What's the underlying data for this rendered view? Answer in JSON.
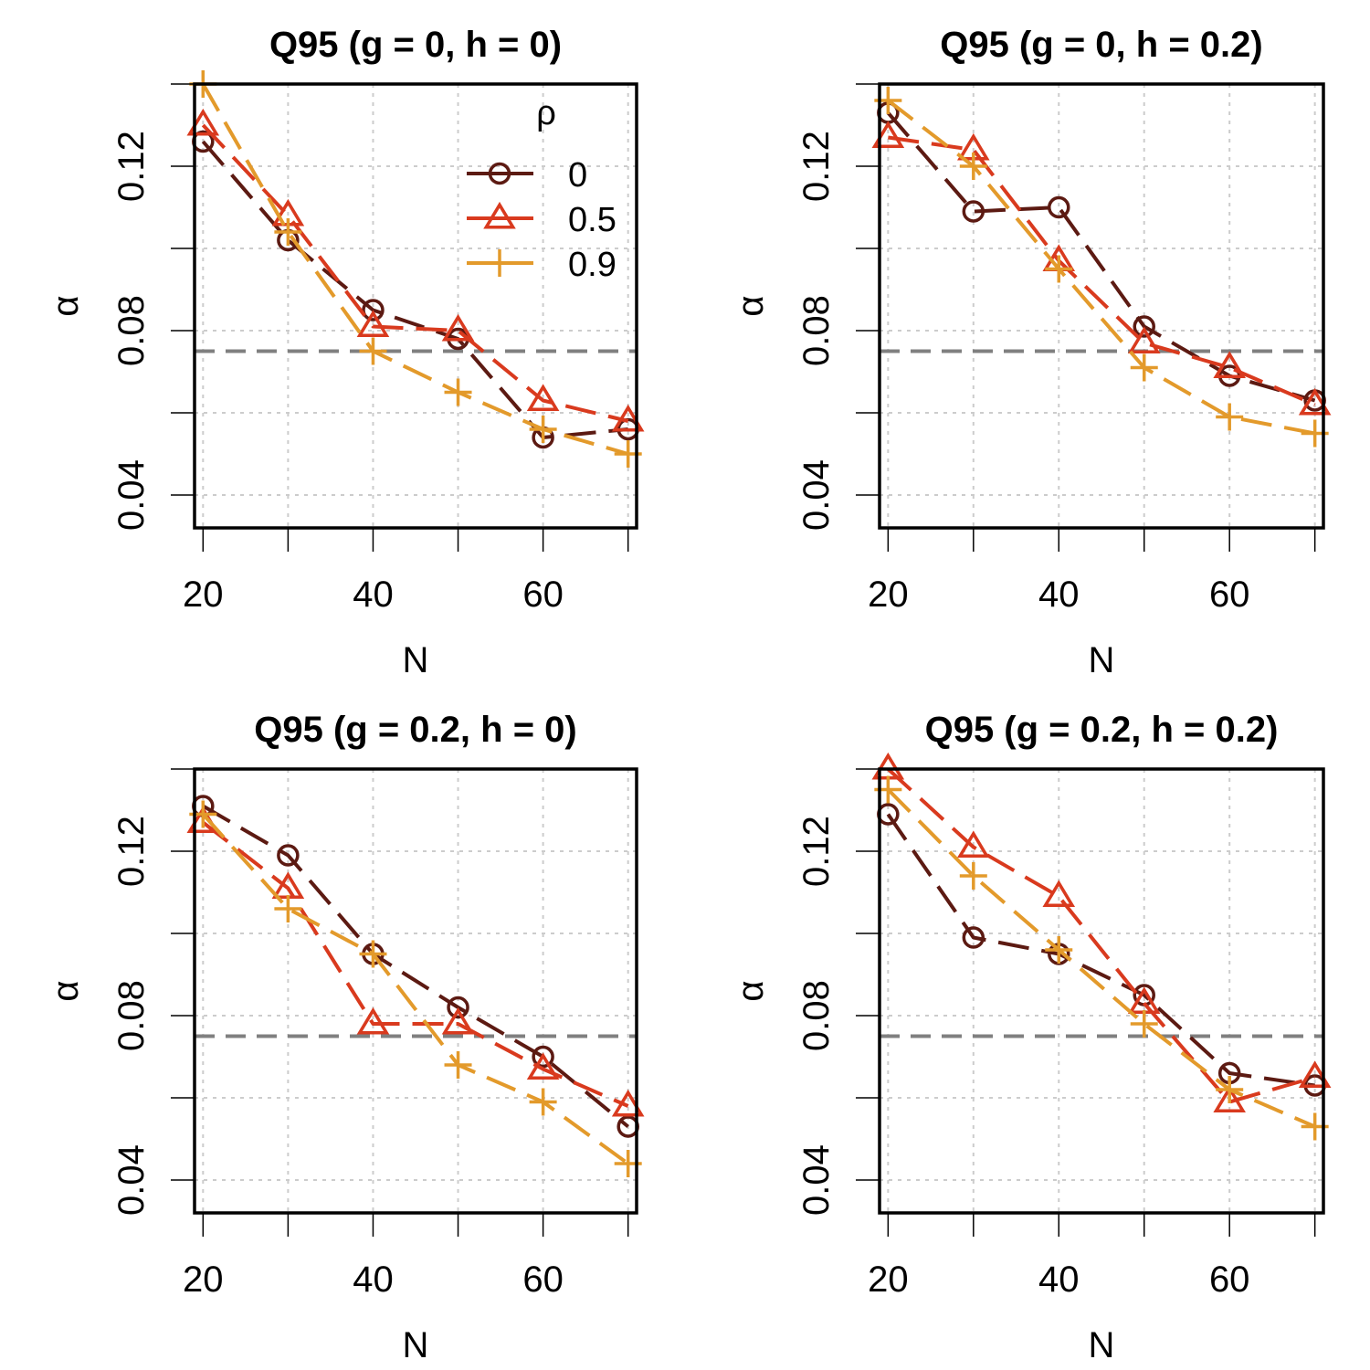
{
  "figure": {
    "xlabel": "N",
    "ylabel": "α",
    "legend": {
      "title": "ρ",
      "placement": "top-right of first panel",
      "entries": [
        {
          "label": "0",
          "marker": "circle",
          "color": "#5C1A12"
        },
        {
          "label": "0.5",
          "marker": "triangle",
          "color": "#D93A1E"
        },
        {
          "label": "0.9",
          "marker": "plus",
          "color": "#E39A2B"
        }
      ]
    },
    "reference_line": {
      "y": 0.075,
      "color": "#808080",
      "style": "dashed"
    }
  },
  "chart_data": [
    {
      "type": "line",
      "title": "Q95 (g = 0, h = 0)",
      "xlabel": "N",
      "ylabel": "α",
      "x": [
        20,
        30,
        40,
        50,
        60,
        70
      ],
      "xticks": [
        "20",
        "40",
        "60"
      ],
      "yticks": [
        "0.04",
        "0.08",
        "0.12"
      ],
      "xlim": [
        19,
        71
      ],
      "ylim": [
        0.032,
        0.14
      ],
      "grid": true,
      "series": [
        {
          "name": "0",
          "values": [
            0.126,
            0.102,
            0.085,
            0.078,
            0.054,
            0.056
          ]
        },
        {
          "name": "0.5",
          "values": [
            0.13,
            0.108,
            0.081,
            0.08,
            0.063,
            0.058
          ]
        },
        {
          "name": "0.9",
          "values": [
            0.14,
            0.104,
            0.075,
            0.065,
            0.056,
            0.05
          ]
        }
      ]
    },
    {
      "type": "line",
      "title": "Q95 (g = 0, h = 0.2)",
      "xlabel": "N",
      "ylabel": "α",
      "x": [
        20,
        30,
        40,
        50,
        60,
        70
      ],
      "xticks": [
        "20",
        "40",
        "60"
      ],
      "yticks": [
        "0.04",
        "0.08",
        "0.12"
      ],
      "xlim": [
        19,
        71
      ],
      "ylim": [
        0.032,
        0.14
      ],
      "grid": true,
      "series": [
        {
          "name": "0",
          "values": [
            0.133,
            0.109,
            0.11,
            0.081,
            0.069,
            0.063
          ]
        },
        {
          "name": "0.5",
          "values": [
            0.127,
            0.124,
            0.097,
            0.077,
            0.071,
            0.062
          ]
        },
        {
          "name": "0.9",
          "values": [
            0.136,
            0.12,
            0.095,
            0.071,
            0.059,
            0.055
          ]
        }
      ]
    },
    {
      "type": "line",
      "title": "Q95 (g = 0.2, h = 0)",
      "xlabel": "N",
      "ylabel": "α",
      "x": [
        20,
        30,
        40,
        50,
        60,
        70
      ],
      "xticks": [
        "20",
        "40",
        "60"
      ],
      "yticks": [
        "0.04",
        "0.08",
        "0.12"
      ],
      "xlim": [
        19,
        71
      ],
      "ylim": [
        0.032,
        0.14
      ],
      "grid": true,
      "series": [
        {
          "name": "0",
          "values": [
            0.131,
            0.119,
            0.095,
            0.082,
            0.07,
            0.053
          ]
        },
        {
          "name": "0.5",
          "values": [
            0.127,
            0.111,
            0.078,
            0.078,
            0.067,
            0.058
          ]
        },
        {
          "name": "0.9",
          "values": [
            0.129,
            0.106,
            0.095,
            0.068,
            0.059,
            0.044
          ]
        }
      ]
    },
    {
      "type": "line",
      "title": "Q95 (g = 0.2, h = 0.2)",
      "xlabel": "N",
      "ylabel": "α",
      "x": [
        20,
        30,
        40,
        50,
        60,
        70
      ],
      "xticks": [
        "20",
        "40",
        "60"
      ],
      "yticks": [
        "0.04",
        "0.08",
        "0.12"
      ],
      "xlim": [
        19,
        71
      ],
      "ylim": [
        0.032,
        0.14
      ],
      "grid": true,
      "series": [
        {
          "name": "0",
          "values": [
            0.129,
            0.099,
            0.095,
            0.085,
            0.066,
            0.063
          ]
        },
        {
          "name": "0.5",
          "values": [
            0.14,
            0.121,
            0.109,
            0.083,
            0.059,
            0.065
          ]
        },
        {
          "name": "0.9",
          "values": [
            0.135,
            0.114,
            0.096,
            0.078,
            0.062,
            0.053
          ]
        }
      ]
    }
  ]
}
